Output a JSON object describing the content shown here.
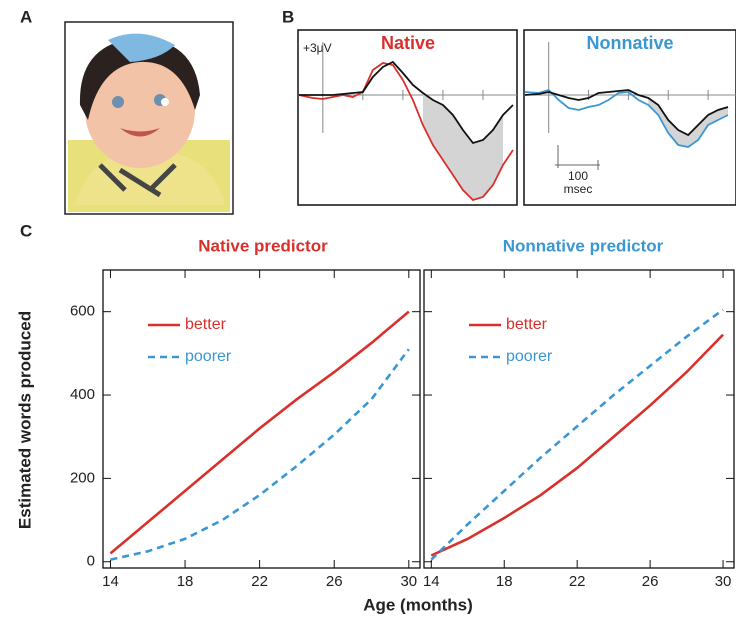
{
  "panel_labels": [
    "A",
    "B",
    "C"
  ],
  "erp_scale": {
    "amplitude": "+3μV",
    "time_value": "100",
    "time_unit": "msec"
  },
  "panel_c": {
    "y_label": "Estimated words produced",
    "x_label": "Age (months)"
  },
  "chart_data": [
    {
      "type": "line",
      "title": "Native",
      "title_color": "#d9302c",
      "x": [
        -60,
        -25,
        0,
        25,
        50,
        75,
        100,
        125,
        150,
        175,
        200,
        225,
        250,
        275,
        300,
        325,
        350,
        375,
        400,
        425,
        450,
        475
      ],
      "series": [
        {
          "color": "#d9302c",
          "values": [
            0,
            -0.3,
            -0.4,
            -0.2,
            0,
            -0.2,
            0.3,
            2.5,
            3.2,
            3.0,
            1.5,
            -0.5,
            -3,
            -5,
            -6.5,
            -8,
            -9.5,
            -10.5,
            -10.2,
            -9,
            -7,
            -5.5
          ]
        },
        {
          "color": "#111111",
          "values": [
            0,
            0,
            0,
            0,
            0.1,
            0.2,
            0.3,
            1.8,
            2.8,
            3.3,
            2.2,
            1.0,
            0.2,
            -0.5,
            -1,
            -2,
            -3.5,
            -4.8,
            -4.5,
            -3.5,
            -2,
            -1
          ]
        }
      ],
      "highlight_x": [
        250,
        450
      ],
      "xlim": [
        -62,
        485
      ],
      "ylim": [
        -11,
        6.5
      ],
      "xticks": [
        0,
        100,
        200,
        300,
        400
      ]
    },
    {
      "type": "line",
      "title": "Nonnative",
      "title_color": "#3a97d4",
      "x": [
        -60,
        -25,
        0,
        25,
        50,
        75,
        100,
        125,
        150,
        175,
        200,
        225,
        250,
        275,
        300,
        325,
        350,
        375,
        400,
        425,
        450
      ],
      "series": [
        {
          "color": "#3a97d4",
          "values": [
            0.3,
            0.2,
            0.5,
            -0.5,
            -1.3,
            -1.5,
            -1.2,
            -1,
            -0.5,
            0.2,
            0.3,
            -0.5,
            -1,
            -2,
            -3.8,
            -5,
            -5.2,
            -4.5,
            -3,
            -2.5,
            -2
          ]
        },
        {
          "color": "#111111",
          "values": [
            0,
            0.1,
            0.3,
            0,
            -0.3,
            -0.5,
            -0.3,
            0.2,
            0.3,
            0.4,
            0.5,
            0,
            -0.3,
            -1,
            -2.5,
            -3.5,
            -4,
            -3,
            -2,
            -1.5,
            -1.2
          ]
        }
      ],
      "highlight_x": [
        250,
        450
      ],
      "xlim": [
        -62,
        470
      ],
      "ylim": [
        -11,
        6.5
      ],
      "xticks": [
        0,
        100,
        200,
        300,
        400
      ]
    },
    {
      "type": "line",
      "title": "Native predictor",
      "title_color": "#d9302c",
      "x": [
        14,
        16,
        18,
        20,
        22,
        24,
        26,
        28,
        30
      ],
      "series": [
        {
          "name": "better",
          "color": "#d9302c",
          "dash": false,
          "values": [
            20,
            95,
            170,
            245,
            320,
            390,
            455,
            525,
            600
          ]
        },
        {
          "name": "poorer",
          "color": "#3a97d4",
          "dash": true,
          "values": [
            5,
            25,
            55,
            100,
            160,
            230,
            305,
            390,
            510
          ]
        }
      ],
      "xlim": [
        13.6,
        30.6
      ],
      "ylim": [
        -15,
        700
      ],
      "xticks": [
        14,
        18,
        22,
        26,
        30
      ],
      "yticks": [
        0,
        200,
        400,
        600
      ],
      "legend": "upper left"
    },
    {
      "type": "line",
      "title": "Nonnative predictor",
      "title_color": "#3a97d4",
      "x": [
        14,
        16,
        18,
        20,
        22,
        24,
        26,
        28,
        30
      ],
      "series": [
        {
          "name": "better",
          "color": "#d9302c",
          "dash": false,
          "values": [
            15,
            55,
            105,
            160,
            225,
            300,
            375,
            455,
            545
          ]
        },
        {
          "name": "poorer",
          "color": "#3a97d4",
          "dash": true,
          "values": [
            5,
            90,
            170,
            250,
            325,
            400,
            470,
            540,
            605
          ]
        }
      ],
      "xlim": [
        13.6,
        30.6
      ],
      "ylim": [
        -15,
        700
      ],
      "xticks": [
        14,
        18,
        22,
        26,
        30
      ],
      "yticks": [
        0,
        200,
        400,
        600
      ],
      "legend": "upper left"
    }
  ]
}
